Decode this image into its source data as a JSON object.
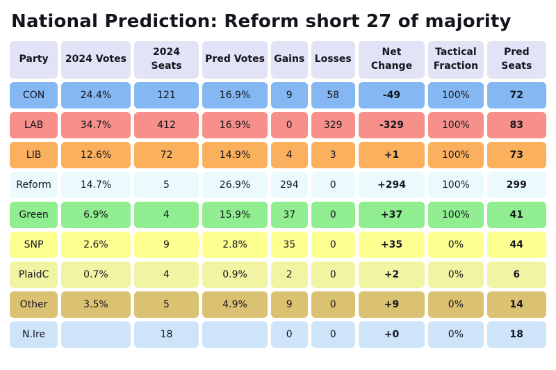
{
  "page": {
    "title": "National Prediction: Reform short 27 of majority"
  },
  "chart_data": {
    "type": "table",
    "title": "National Prediction: Reform short 27 of majority",
    "header_color": "#e3e3f7",
    "columns": [
      "Party",
      "2024 Votes",
      "2024 Seats",
      "Pred Votes",
      "Gains",
      "Losses",
      "Net Change",
      "Tactical Fraction",
      "Pred Seats"
    ],
    "rows": [
      {
        "cells": [
          "CON",
          "24.4%",
          "121",
          "16.9%",
          "9",
          "58",
          "-49",
          "100%",
          "72"
        ],
        "color": "#85b8f2"
      },
      {
        "cells": [
          "LAB",
          "34.7%",
          "412",
          "16.9%",
          "0",
          "329",
          "-329",
          "100%",
          "83"
        ],
        "color": "#f7908b"
      },
      {
        "cells": [
          "LIB",
          "12.6%",
          "72",
          "14.9%",
          "4",
          "3",
          "+1",
          "100%",
          "73"
        ],
        "color": "#fbb05e"
      },
      {
        "cells": [
          "Reform",
          "14.7%",
          "5",
          "26.9%",
          "294",
          "0",
          "+294",
          "100%",
          "299"
        ],
        "color": "#ebfbfd"
      },
      {
        "cells": [
          "Green",
          "6.9%",
          "4",
          "15.9%",
          "37",
          "0",
          "+37",
          "100%",
          "41"
        ],
        "color": "#90ee90"
      },
      {
        "cells": [
          "SNP",
          "2.6%",
          "9",
          "2.8%",
          "35",
          "0",
          "+35",
          "0%",
          "44"
        ],
        "color": "#feff91"
      },
      {
        "cells": [
          "PlaidC",
          "0.7%",
          "4",
          "0.9%",
          "2",
          "0",
          "+2",
          "0%",
          "6"
        ],
        "color": "#f1f5a3"
      },
      {
        "cells": [
          "Other",
          "3.5%",
          "5",
          "4.9%",
          "9",
          "0",
          "+9",
          "0%",
          "14"
        ],
        "color": "#dbc172"
      },
      {
        "cells": [
          "N.Ire",
          "",
          "18",
          "",
          "0",
          "0",
          "+0",
          "0%",
          "18"
        ],
        "color": "#cde4f9"
      }
    ]
  }
}
